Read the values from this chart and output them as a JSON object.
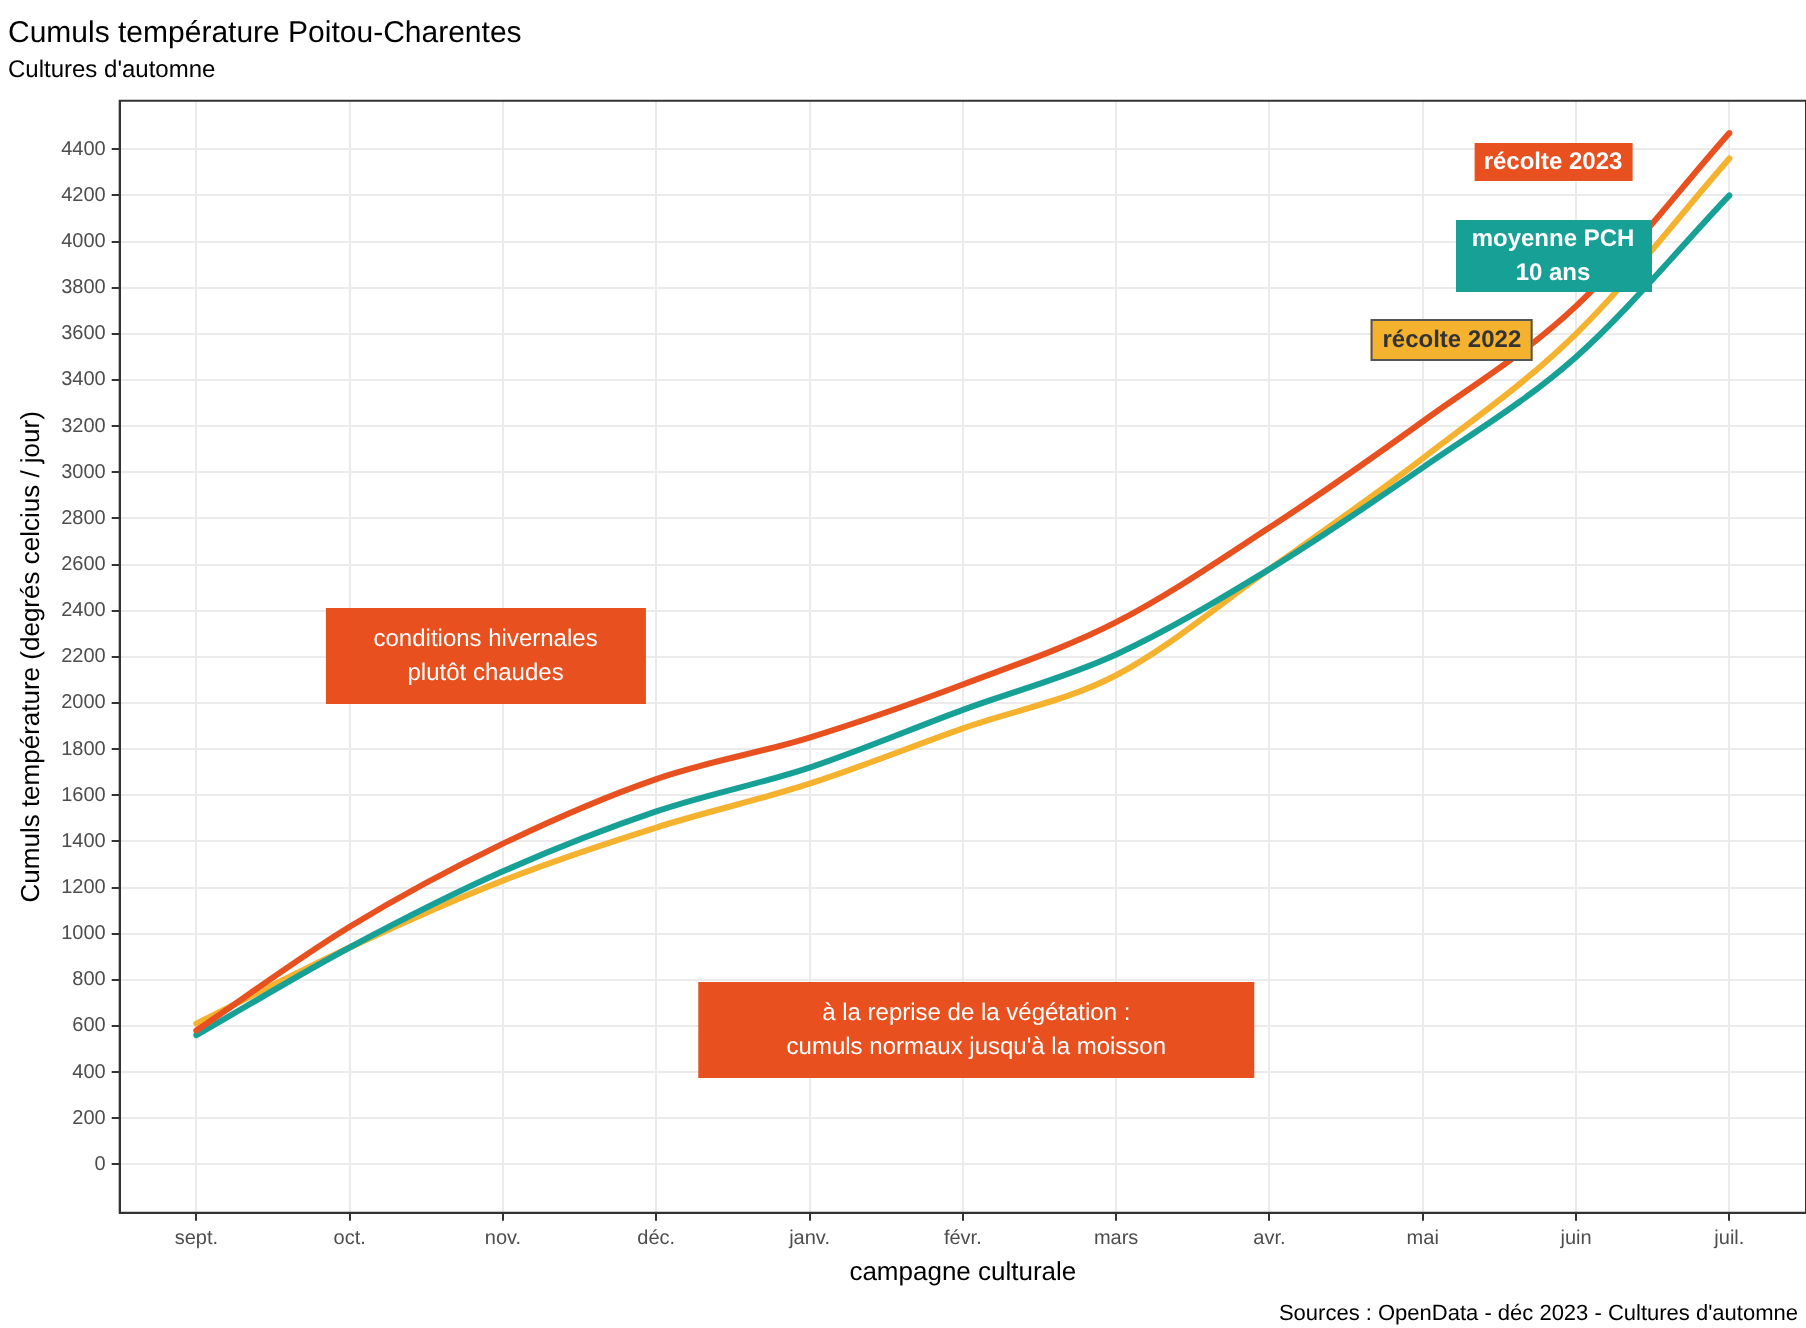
{
  "chart_data": {
    "type": "line",
    "title": "Cumuls température Poitou-Charentes",
    "subtitle": "Cultures d'automne",
    "xlabel": "campagne culturale",
    "ylabel": "Cumuls température (degrés celcius / jour)",
    "categories": [
      "sept.",
      "oct.",
      "nov.",
      "déc.",
      "janv.",
      "févr.",
      "mars",
      "avr.",
      "mai",
      "juin",
      "juil."
    ],
    "ylim": [
      -210,
      4610
    ],
    "yticks": [
      0,
      200,
      400,
      600,
      800,
      1000,
      1200,
      1400,
      1600,
      1800,
      2000,
      2200,
      2400,
      2600,
      2800,
      3000,
      3200,
      3400,
      3600,
      3800,
      4000,
      4200,
      4400
    ],
    "series": [
      {
        "name": "récolte 2023",
        "color": "#e8511f",
        "values": [
          580,
          1030,
          1390,
          1670,
          1850,
          2080,
          2350,
          2760,
          3220,
          3720,
          4470
        ]
      },
      {
        "name": "moyenne PCH 10 ans",
        "color": "#17a196",
        "values": [
          560,
          940,
          1270,
          1530,
          1720,
          1970,
          2210,
          2580,
          3020,
          3500,
          4200
        ]
      },
      {
        "name": "récolte 2022",
        "color": "#f5b22e",
        "values": [
          610,
          940,
          1230,
          1460,
          1650,
          1890,
          2120,
          2580,
          3060,
          3600,
          4360
        ]
      }
    ],
    "grid": true,
    "legend": false,
    "marker": "none",
    "line_style": "solid",
    "annotations": [
      "conditions hivernales\nplutôt chaudes",
      "à la reprise de la végétation :\ncumuls normaux jusqu'à la moisson",
      "Sources : OpenData - déc 2023 - Cultures d'automne"
    ]
  }
}
